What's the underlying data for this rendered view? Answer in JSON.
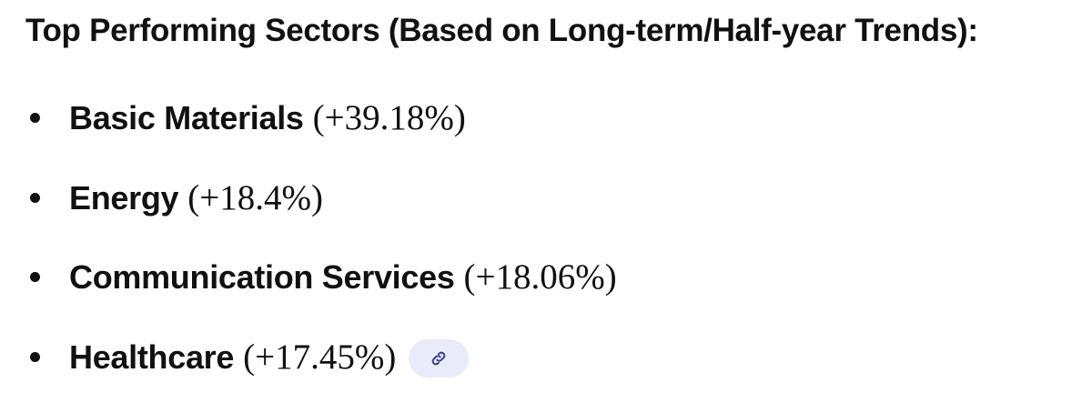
{
  "header": {
    "title": "Top Performing Sectors (Based on Long-term/Half-year Trends):"
  },
  "items": [
    {
      "name": "Basic Materials",
      "value": "(+39.18%)"
    },
    {
      "name": "Energy",
      "value": "(+18.4%)"
    },
    {
      "name": "Communication Services",
      "value": "(+18.06%)"
    },
    {
      "name": "Healthcare",
      "value": "(+17.45%)"
    }
  ]
}
